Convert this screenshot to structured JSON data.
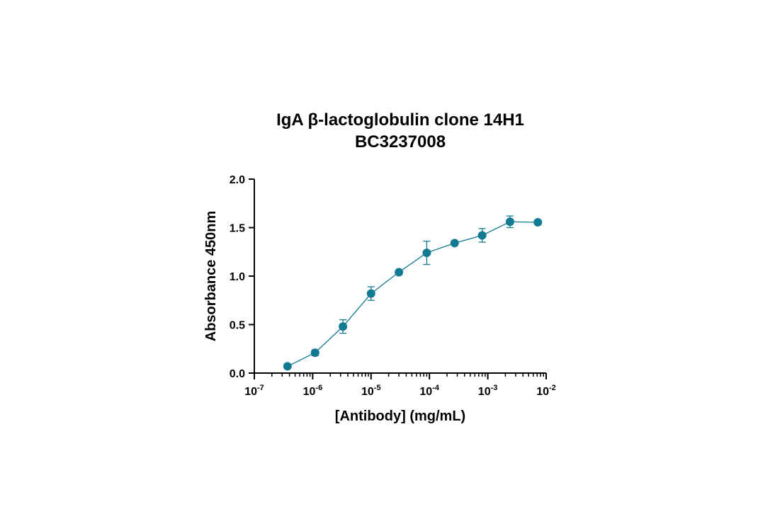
{
  "chart_data": {
    "type": "line",
    "title": "IgA β-lactoglobulin clone 14H1",
    "subtitle": "BC3237008",
    "xlabel": "[Antibody] (mg/mL)",
    "ylabel": "Absorbance 450nm",
    "x_scale": "log",
    "xlim": [
      1e-07,
      0.01
    ],
    "ylim": [
      0,
      2.0
    ],
    "y_ticks": [
      {
        "value": 0.0,
        "label": "0.0"
      },
      {
        "value": 0.5,
        "label": "0.5"
      },
      {
        "value": 1.0,
        "label": "1.0"
      },
      {
        "value": 1.5,
        "label": "1.5"
      },
      {
        "value": 2.0,
        "label": "2.0"
      }
    ],
    "x_ticks": [
      {
        "value": 1e-07,
        "base": "10",
        "exp": "-7"
      },
      {
        "value": 1e-06,
        "base": "10",
        "exp": "-6"
      },
      {
        "value": 1e-05,
        "base": "10",
        "exp": "-5"
      },
      {
        "value": 0.0001,
        "base": "10",
        "exp": "-4"
      },
      {
        "value": 0.001,
        "base": "10",
        "exp": "-3"
      },
      {
        "value": 0.01,
        "base": "10",
        "exp": "-2"
      }
    ],
    "grid": false,
    "series": [
      {
        "color": "#137a91",
        "marker": "circle",
        "x": [
          3.7e-07,
          1.1e-06,
          3.3e-06,
          1e-05,
          3e-05,
          9e-05,
          0.00027,
          0.0008,
          0.0024,
          0.0072
        ],
        "y": [
          0.07,
          0.21,
          0.48,
          0.82,
          1.04,
          1.24,
          1.34,
          1.42,
          1.56,
          1.555
        ],
        "error": [
          0.0,
          0.03,
          0.07,
          0.07,
          0.0,
          0.12,
          0.0,
          0.07,
          0.06,
          0.0
        ]
      }
    ]
  }
}
